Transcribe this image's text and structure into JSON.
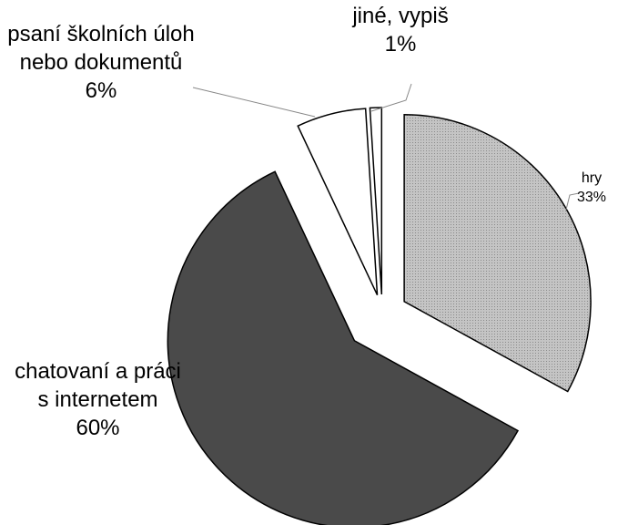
{
  "chart_data": {
    "type": "pie",
    "categories": [
      "hry",
      "chatovaní a práci s internetem",
      "psaní školních úloh nebo dokumentů",
      "jiné, vypiš"
    ],
    "values": [
      33,
      60,
      6,
      1
    ],
    "value_labels": [
      "33%",
      "60%",
      "6%",
      "1%"
    ],
    "colors": [
      "#c4c4c4",
      "#4a4a4a",
      "#ffffff",
      "#ffffff"
    ]
  }
}
